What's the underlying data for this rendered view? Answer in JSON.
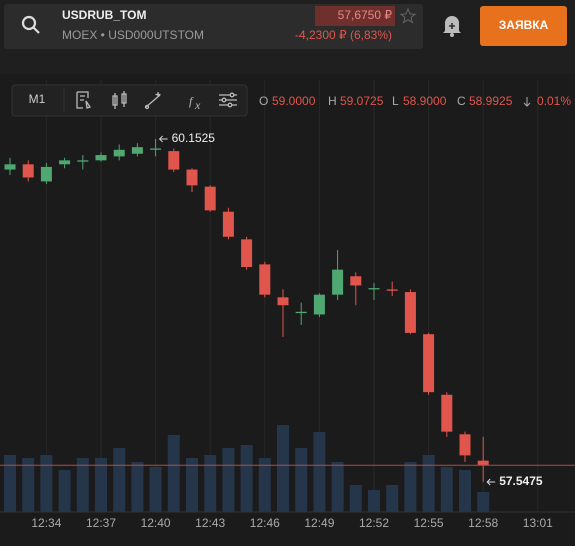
{
  "header": {
    "ticker": "USDRUB_TOM",
    "exchange": "MOEX • USD000UTSTOM",
    "price": "57,6750 ₽",
    "change": "-4,2300 ₽ (6,83%)",
    "order_button": "ЗАЯВКА"
  },
  "toolbar": {
    "interval": "M1",
    "ohlc": {
      "o_label": "O",
      "o": "59.0000",
      "h_label": "H",
      "h": "59.0725",
      "l_label": "L",
      "l": "58.9000",
      "c_label": "C",
      "c": "58.9925",
      "change": "0.01%"
    }
  },
  "chart_data": {
    "type": "candlestick",
    "x": [
      "12:32",
      "12:33",
      "12:34",
      "12:35",
      "12:36",
      "12:37",
      "12:38",
      "12:39",
      "12:40",
      "12:41",
      "12:42",
      "12:43",
      "12:44",
      "12:45",
      "12:46",
      "12:47",
      "12:48",
      "12:49",
      "12:50",
      "12:51",
      "12:52",
      "12:53",
      "12:54",
      "12:55",
      "12:56",
      "12:57",
      "12:58"
    ],
    "open": [
      59.92,
      59.96,
      59.83,
      59.96,
      59.98,
      59.99,
      60.02,
      60.04,
      60.07,
      60.06,
      59.92,
      59.79,
      59.6,
      59.39,
      59.2,
      58.95,
      58.83,
      58.82,
      58.97,
      59.11,
      59.01,
      59.01,
      58.99,
      58.67,
      58.21,
      57.91,
      57.71
    ],
    "high": [
      60.01,
      59.99,
      59.97,
      60.01,
      60.03,
      60.05,
      60.11,
      60.12,
      60.1525,
      60.08,
      59.93,
      59.8,
      59.63,
      59.41,
      59.22,
      59.01,
      58.91,
      58.98,
      59.31,
      59.14,
      59.06,
      59.07,
      59.01,
      58.68,
      58.23,
      57.93,
      57.89
    ],
    "low": [
      59.88,
      59.83,
      59.81,
      59.93,
      59.92,
      59.98,
      59.99,
      60.02,
      60.02,
      59.9,
      59.75,
      59.6,
      59.39,
      59.16,
      58.95,
      58.65,
      58.74,
      58.8,
      58.93,
      58.89,
      58.93,
      58.96,
      58.67,
      58.21,
      57.89,
      57.7,
      57.5475
    ],
    "close": [
      59.96,
      59.86,
      59.94,
      59.99,
      59.99,
      60.03,
      60.07,
      60.09,
      60.08,
      59.92,
      59.8,
      59.61,
      59.41,
      59.18,
      58.97,
      58.89,
      58.84,
      58.97,
      59.16,
      59.04,
      59.02,
      59.0,
      58.68,
      58.23,
      57.93,
      57.75,
      57.675
    ],
    "volume": [
      57,
      54,
      57,
      42,
      54,
      54,
      64,
      50,
      45,
      77,
      54,
      57,
      64,
      67,
      54,
      87,
      64,
      80,
      50,
      27,
      22,
      27,
      50,
      57,
      45,
      42,
      20
    ],
    "up_color": "#4fa872",
    "down_color": "#e0564c",
    "volume_color": "#26364a",
    "price_line_color": "#b84a44",
    "xlim": [
      "12:31",
      "13:03"
    ],
    "xticks": [
      "12:34",
      "12:37",
      "12:40",
      "12:43",
      "12:46",
      "12:49",
      "12:52",
      "12:55",
      "12:58",
      "13:01"
    ],
    "ylim": [
      57.32,
      60.6
    ],
    "volume_lim": [
      0,
      100
    ],
    "annotations": [
      {
        "label": "60.1525",
        "x": "12:40",
        "value": 60.1525
      },
      {
        "label": "57.5475",
        "x": "12:58",
        "value": 57.5475
      }
    ]
  }
}
